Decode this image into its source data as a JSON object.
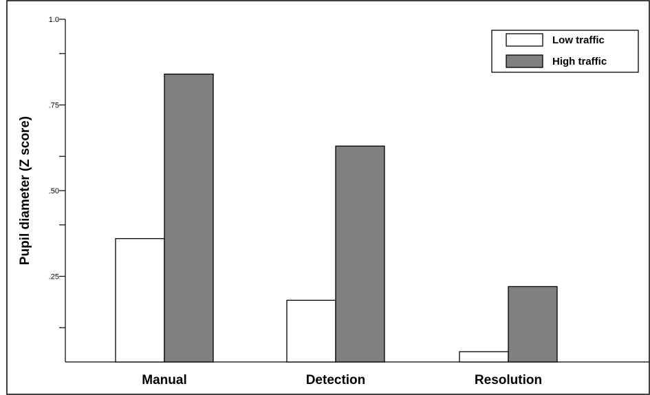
{
  "chart_data": {
    "type": "bar",
    "title": "",
    "xlabel": "",
    "ylabel": "Pupil diameter (Z score)",
    "ylim": [
      0,
      1.0
    ],
    "y_tick_values": [
      0.1,
      0.25,
      0.4,
      0.5,
      0.6,
      0.75,
      0.9,
      1.0
    ],
    "y_tick_labels": [
      "",
      ".25",
      "",
      ".50",
      "",
      ".75",
      "",
      "1.0"
    ],
    "categories": [
      "Manual",
      "Detection",
      "Resolution"
    ],
    "series": [
      {
        "name": "Low traffic",
        "color": "#ffffff",
        "values": [
          0.36,
          0.18,
          0.03
        ]
      },
      {
        "name": "High traffic",
        "color": "#808080",
        "values": [
          0.84,
          0.63,
          0.22
        ]
      }
    ],
    "grid": false,
    "legend": {
      "position": "top-right",
      "entries": [
        "Low traffic",
        "High traffic"
      ]
    }
  }
}
